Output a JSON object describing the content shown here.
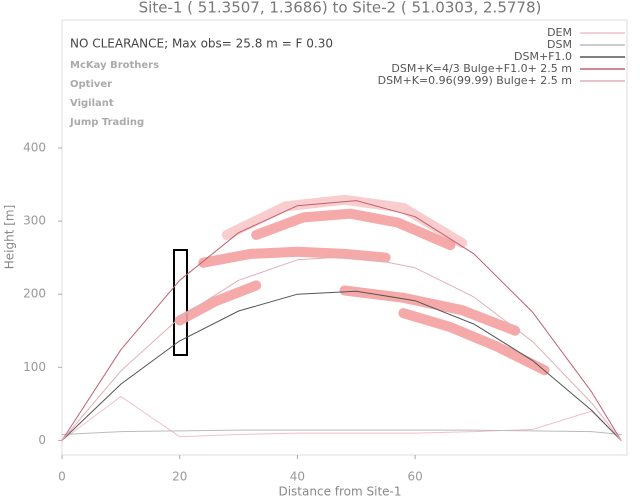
{
  "chart_data": {
    "type": "line",
    "title": "Site-1 ( 51.3507,   1.3686) to Site-2 ( 51.0303,   2.5778)",
    "x_label": "Distance from Site-1",
    "y_label": "Height [m]",
    "annotation": "NO CLEARANCE; Max obs= 25.8 m = F 0.30",
    "names": [
      "McKay Brothers",
      "Optiver",
      "Vigilant",
      "Jump Trading"
    ],
    "x": [
      0,
      10,
      20,
      30,
      40,
      50,
      60,
      70,
      80,
      90,
      95
    ],
    "series": [
      {
        "name": "DEM",
        "color": "#f0c0c8",
        "values": [
          0,
          60,
          5,
          8,
          10,
          10,
          10,
          12,
          15,
          40,
          0
        ]
      },
      {
        "name": "DSM",
        "color": "#bbbbbb",
        "values": [
          8,
          12,
          13,
          14,
          14,
          14,
          14,
          14,
          13,
          12,
          8
        ]
      },
      {
        "name": "DSM+F1.0",
        "color": "#555555",
        "values": [
          0,
          77,
          136,
          177,
          200,
          204,
          191,
          159,
          109,
          41,
          0
        ]
      },
      {
        "name": "DSM+K=4/3 Bulge+F1.0+ 2.5 m",
        "color": "#c06070",
        "values": [
          0,
          124,
          219,
          284,
          321,
          328,
          306,
          255,
          175,
          66,
          0
        ]
      },
      {
        "name": "DSM+K=0.96(99.99) Bulge+ 2.5 m",
        "color": "#e0b0b8",
        "values": [
          0,
          95,
          168,
          219,
          247,
          252,
          236,
          196,
          135,
          51,
          0
        ]
      }
    ],
    "highlights": [
      {
        "color": "#f8c8c8",
        "x": [
          28,
          38,
          48,
          58,
          68
        ],
        "values": [
          281,
          320,
          329,
          318,
          270
        ]
      },
      {
        "color": "#f4a0a0",
        "x": [
          33,
          41,
          49,
          57,
          66
        ],
        "values": [
          281,
          305,
          310,
          298,
          267
        ]
      },
      {
        "color": "#f4a0a0",
        "x": [
          24,
          32,
          40,
          48,
          55
        ],
        "values": [
          243,
          255,
          258,
          255,
          250
        ]
      },
      {
        "color": "#f4a0a0",
        "x": [
          20,
          26,
          33
        ],
        "values": [
          164,
          190,
          212
        ]
      },
      {
        "color": "#f4a0a0",
        "x": [
          48,
          58,
          68,
          77
        ],
        "values": [
          205,
          195,
          178,
          150
        ]
      },
      {
        "color": "#f4a0a0",
        "x": [
          58,
          66,
          74,
          82
        ],
        "values": [
          174,
          155,
          128,
          96
        ]
      }
    ],
    "xlim": [
      0,
      96
    ],
    "ylim": [
      -20,
      575
    ],
    "xticks": [
      0,
      20,
      40,
      60
    ],
    "yticks": [
      0,
      100,
      200,
      300,
      400
    ],
    "legend": "upper right"
  }
}
